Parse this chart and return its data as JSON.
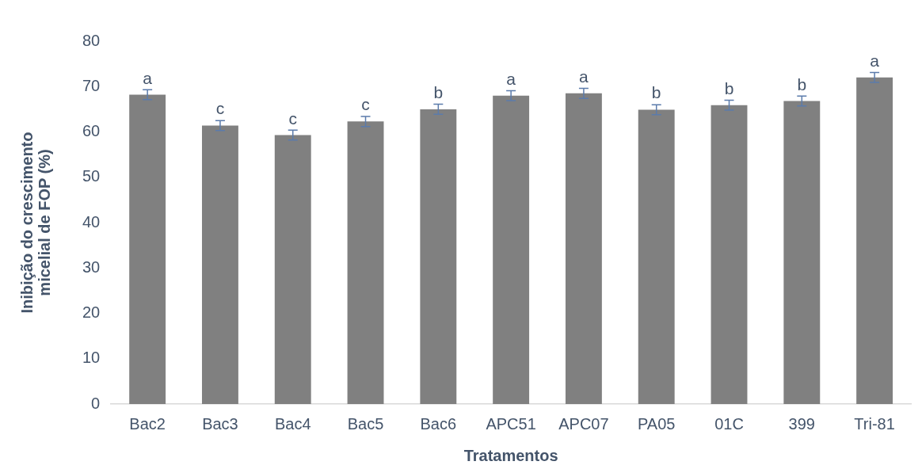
{
  "chart_data": {
    "type": "bar",
    "xlabel": "Tratamentos",
    "ylabel": "Inibição do crescimento\nmicelial de FOP (%)",
    "categories": [
      "Bac2",
      "Bac3",
      "Bac4",
      "Bac5",
      "Bac6",
      "APC51",
      "APC07",
      "PA05",
      "01C",
      "399",
      "Tri-81"
    ],
    "values": [
      68.2,
      61.4,
      59.3,
      62.3,
      65.0,
      68.0,
      68.5,
      64.9,
      65.9,
      66.8,
      72.0
    ],
    "errors": [
      1.1,
      1.1,
      1.1,
      1.1,
      1.1,
      1.1,
      1.1,
      1.1,
      1.1,
      1.1,
      1.1
    ],
    "color": "#808080",
    "ylim": [
      0,
      80
    ],
    "yticks": [
      0,
      10,
      20,
      30,
      40,
      50,
      60,
      70,
      80
    ],
    "grid": false,
    "legend": false,
    "annotations": [
      {
        "text": "a",
        "x": "Bac2",
        "y": 69.3
      },
      {
        "text": "c",
        "x": "Bac3",
        "y": 62.5
      },
      {
        "text": "c",
        "x": "Bac4",
        "y": 60.4
      },
      {
        "text": "c",
        "x": "Bac5",
        "y": 63.4
      },
      {
        "text": "b",
        "x": "Bac6",
        "y": 66.1
      },
      {
        "text": "a",
        "x": "APC51",
        "y": 69.1
      },
      {
        "text": "a",
        "x": "APC07",
        "y": 69.6
      },
      {
        "text": "b",
        "x": "PA05",
        "y": 66.0
      },
      {
        "text": "b",
        "x": "01C",
        "y": 67.0
      },
      {
        "text": "b",
        "x": "399",
        "y": 67.9
      },
      {
        "text": "a",
        "x": "Tri-81",
        "y": 73.1
      }
    ]
  }
}
